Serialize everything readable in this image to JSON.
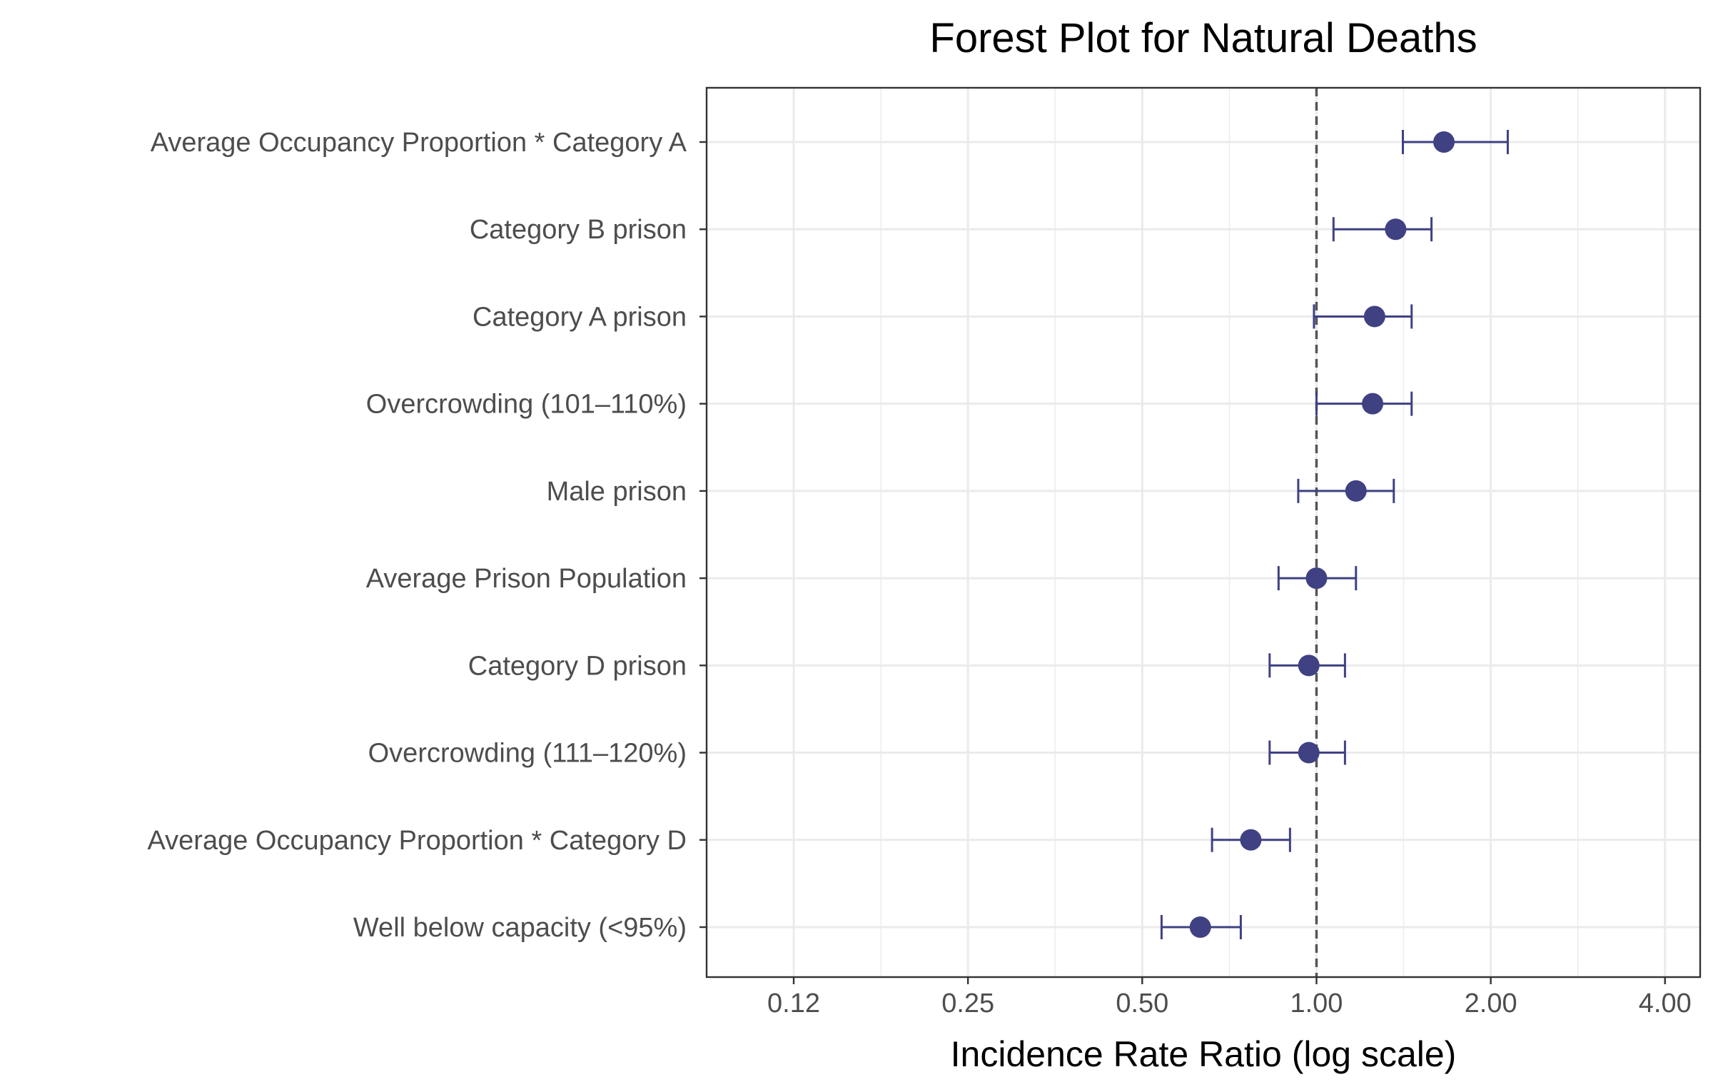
{
  "chart_data": {
    "type": "forest",
    "title": "Forest Plot for Natural Deaths",
    "xlabel": "Incidence Rate Ratio (log scale)",
    "ylabel": "",
    "x_scale": "log2",
    "xlim": [
      0.0884,
      4.6
    ],
    "x_ticks": [
      0.125,
      0.25,
      0.5,
      1,
      2,
      4
    ],
    "x_tick_labels": [
      "0.12",
      "0.25",
      "0.50",
      "1.00",
      "2.00",
      "4.00"
    ],
    "reference_line": 1,
    "grid": true,
    "colors": {
      "points": "#3f4183",
      "reference": "#555555",
      "grid": "#ebebeb",
      "panel_border": "#333333"
    },
    "rows": [
      {
        "label": "Average Occupancy Proportion * Category A",
        "estimate": 1.66,
        "lower": 1.41,
        "upper": 2.14
      },
      {
        "label": "Category B prison",
        "estimate": 1.37,
        "lower": 1.07,
        "upper": 1.58
      },
      {
        "label": "Category A prison",
        "estimate": 1.26,
        "lower": 0.99,
        "upper": 1.46
      },
      {
        "label": "Overcrowding (101–110%)",
        "estimate": 1.25,
        "lower": 1.0,
        "upper": 1.46
      },
      {
        "label": "Male prison",
        "estimate": 1.17,
        "lower": 0.93,
        "upper": 1.36
      },
      {
        "label": "Average Prison Population",
        "estimate": 1.0,
        "lower": 0.86,
        "upper": 1.17
      },
      {
        "label": "Category D prison",
        "estimate": 0.97,
        "lower": 0.83,
        "upper": 1.12
      },
      {
        "label": "Overcrowding (111–120%)",
        "estimate": 0.97,
        "lower": 0.83,
        "upper": 1.12
      },
      {
        "label": "Average Occupancy Proportion * Category D",
        "estimate": 0.77,
        "lower": 0.66,
        "upper": 0.9
      },
      {
        "label": "Well below capacity (<95%)",
        "estimate": 0.63,
        "lower": 0.54,
        "upper": 0.74
      }
    ]
  }
}
